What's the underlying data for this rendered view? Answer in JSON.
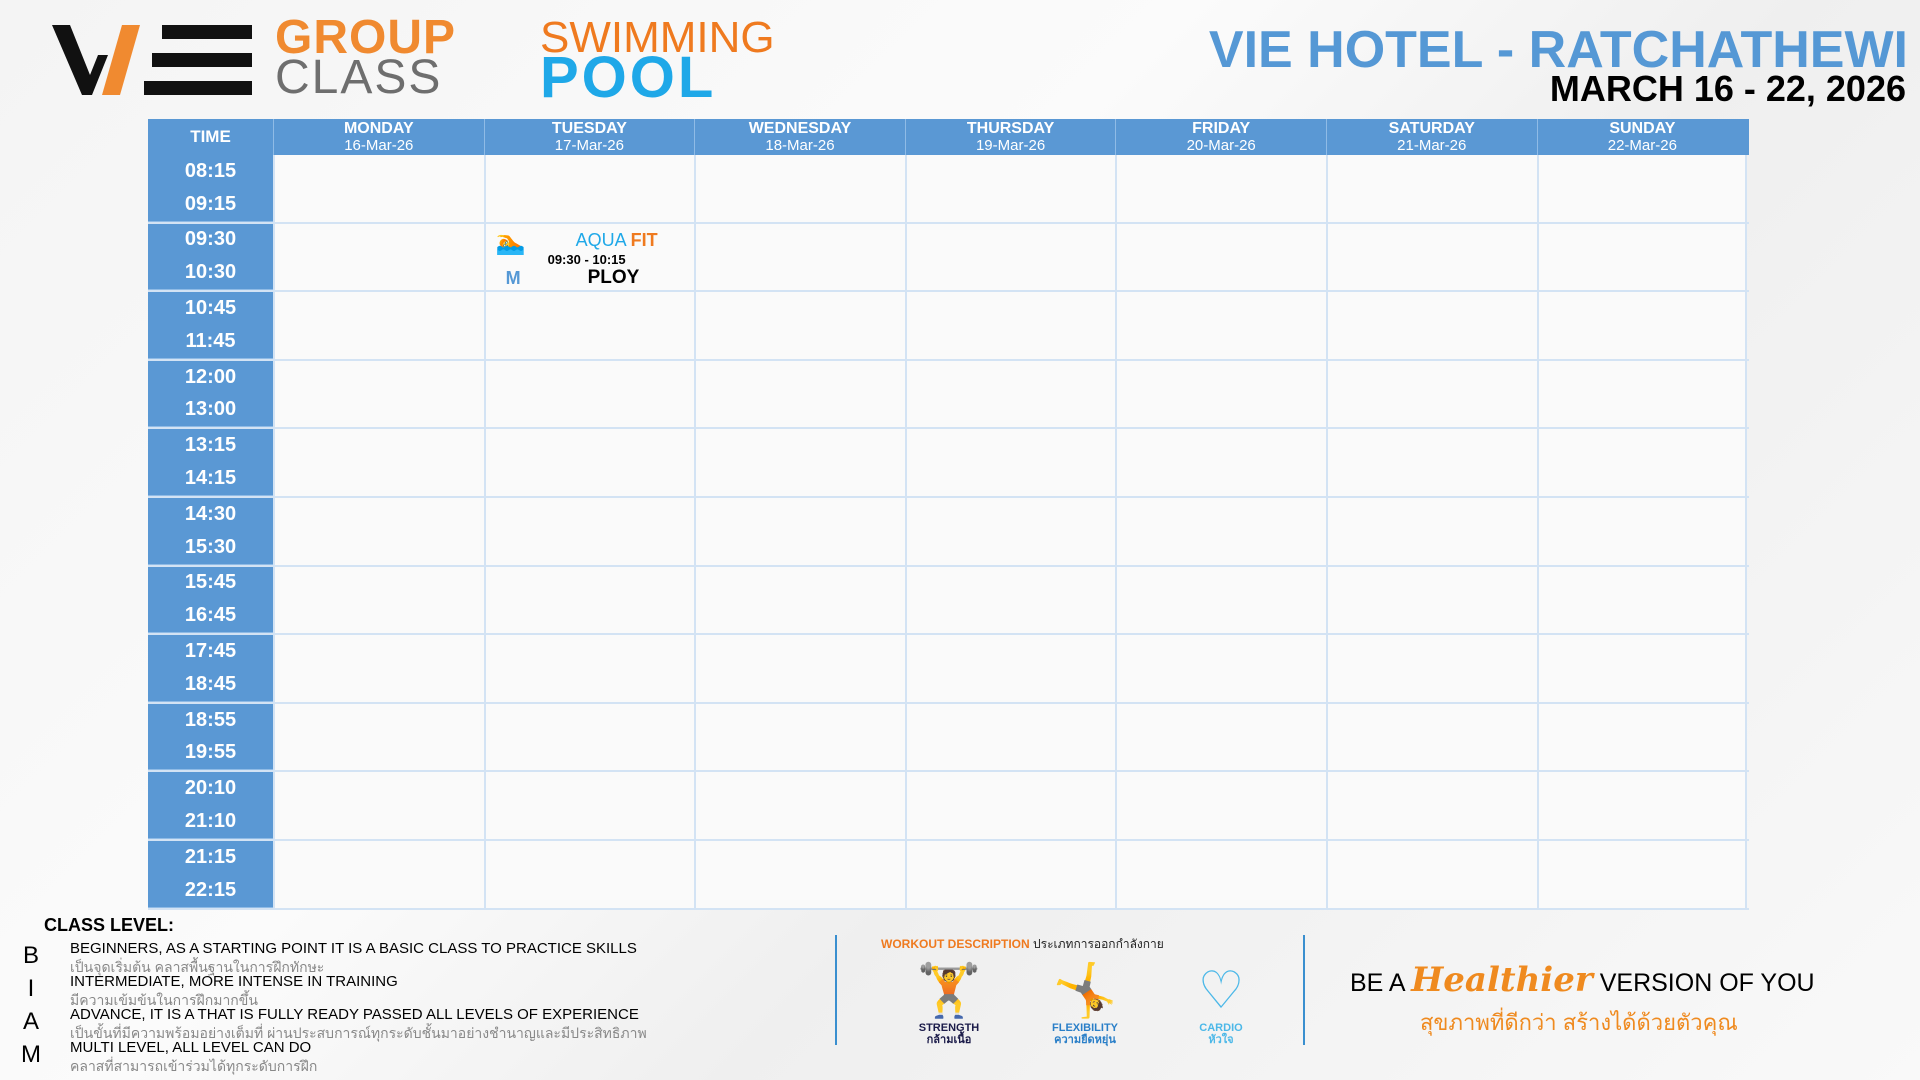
{
  "header": {
    "logo_text": "WE",
    "group": "GROUP",
    "class": "CLASS",
    "swimming": "SWIMMING",
    "pool": "POOL",
    "hotel": "VIE HOTEL - RATCHATHEWI",
    "dates": "MARCH 16 - 22, 2026"
  },
  "table": {
    "time_header": "TIME",
    "days": [
      {
        "name": "MONDAY",
        "date": "16-Mar-26"
      },
      {
        "name": "TUESDAY",
        "date": "17-Mar-26"
      },
      {
        "name": "WEDNESDAY",
        "date": "18-Mar-26"
      },
      {
        "name": "THURSDAY",
        "date": "19-Mar-26"
      },
      {
        "name": "FRIDAY",
        "date": "20-Mar-26"
      },
      {
        "name": "SATURDAY",
        "date": "21-Mar-26"
      },
      {
        "name": "SUNDAY",
        "date": "22-Mar-26"
      }
    ],
    "slots": [
      [
        "08:15",
        "09:15"
      ],
      [
        "09:30",
        "10:30"
      ],
      [
        "10:45",
        "11:45"
      ],
      [
        "12:00",
        "13:00"
      ],
      [
        "13:15",
        "14:15"
      ],
      [
        "14:30",
        "15:30"
      ],
      [
        "15:45",
        "16:45"
      ],
      [
        "17:45",
        "18:45"
      ],
      [
        "18:55",
        "19:55"
      ],
      [
        "20:10",
        "21:10"
      ],
      [
        "21:15",
        "22:15"
      ]
    ],
    "events": [
      {
        "day": 1,
        "slot": 1,
        "icon": "swimmer-icon",
        "name_a": "AQUA",
        "name_b": "FIT",
        "time": "09:30 - 10:15",
        "level": "M",
        "instructor": "PLOY"
      }
    ]
  },
  "levels": {
    "title": "CLASS LEVEL:",
    "items": [
      {
        "letter": "B",
        "en": "BEGINNERS, AS A STARTING POINT IT IS A BASIC CLASS TO PRACTICE SKILLS",
        "th": "เป็นจุดเริ่มต้น คลาสพื้นฐานในการฝึกทักษะ"
      },
      {
        "letter": "I",
        "en": "INTERMEDIATE, MORE INTENSE IN TRAINING",
        "th": "มีความเข้มข้นในการฝึกมากขึ้น"
      },
      {
        "letter": "A",
        "en": "ADVANCE, IT IS A THAT IS FULLY READY PASSED ALL LEVELS OF EXPERIENCE",
        "th": "เป็นขั้นที่มีความพร้อมอย่างเต็มที่ ผ่านประสบการณ์ทุกระดับชั้นมาอย่างชำนาญและมีประสิทธิภาพ"
      },
      {
        "letter": "M",
        "en": "MULTI LEVEL, ALL LEVEL CAN DO",
        "th": "คลาสที่สามารถเข้าร่วมได้ทุกระดับการฝึก"
      }
    ]
  },
  "workout": {
    "title_en": "WORKOUT DESCRIPTION",
    "title_th": "ประเภทการออกกำลังกาย",
    "items": [
      {
        "icon": "strength-icon",
        "en": "STRENGTH",
        "th": "กล้ามเนื้อ",
        "color": "#1c1c4a"
      },
      {
        "icon": "flexibility-icon",
        "en": "FLEXIBILITY",
        "th": "ความยืดหยุ่น",
        "color": "#2a7fc8"
      },
      {
        "icon": "cardio-icon",
        "en": "CARDIO",
        "th": "หัวใจ",
        "color": "#4cb8e8"
      }
    ]
  },
  "slogan": {
    "a": "BE A",
    "b": "Healthier",
    "c": "VERSION OF YOU",
    "th_a": "สุขภาพที่ดีกว่า",
    "th_b": "สร้างได้ด้วยตัวคุณ"
  },
  "colors": {
    "header_blue": "#5a98d4",
    "orange": "#ef7a1f",
    "aqua": "#1fa8e8"
  }
}
